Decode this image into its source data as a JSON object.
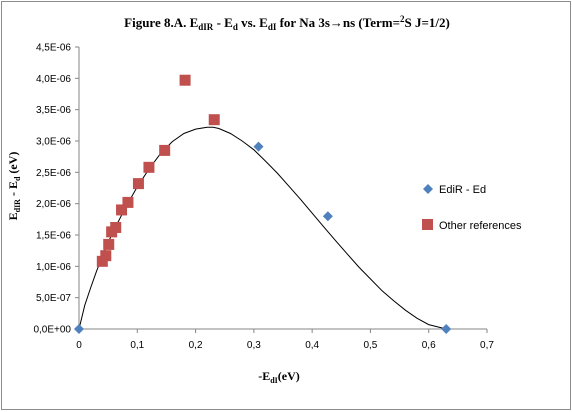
{
  "chart_data": {
    "type": "scatter",
    "title_parts": [
      "Figure 8.A.  E",
      "dIR",
      " - E",
      "d",
      " vs. E",
      "dI",
      " for Na 3s",
      "→",
      "ns (Term=",
      "2",
      "S J=1/2)"
    ],
    "xlabel_parts": [
      "-E",
      "dI",
      "(eV)"
    ],
    "ylabel_parts": [
      "E",
      "dIR",
      " - E",
      "d",
      " (eV)"
    ],
    "xlim": [
      0,
      0.7
    ],
    "ylim": [
      0,
      4.5e-06
    ],
    "x_ticks": [
      0,
      0.1,
      0.2,
      0.3,
      0.4,
      0.5,
      0.6,
      0.7
    ],
    "x_tick_labels": [
      "0",
      "0,1",
      "0,2",
      "0,3",
      "0,4",
      "0,5",
      "0,6",
      "0,7"
    ],
    "y_ticks": [
      0,
      5e-07,
      1e-06,
      1.5e-06,
      2e-06,
      2.5e-06,
      3e-06,
      3.5e-06,
      4e-06,
      4.5e-06
    ],
    "y_tick_labels": [
      "0,0E+00",
      "5,0E-07",
      "1,0E-06",
      "1,5E-06",
      "2,0E-06",
      "2,5E-06",
      "3,0E-06",
      "3,5E-06",
      "4,0E-06",
      "4,5E-06"
    ],
    "grid": false,
    "legend_position": "right",
    "series": [
      {
        "name": "EdiR - Ed",
        "marker": "diamond",
        "color": "#4f81bd",
        "x": [
          0.0,
          0.308,
          0.427,
          0.63
        ],
        "y": [
          0.0,
          2.91e-06,
          1.8e-06,
          0.0
        ]
      },
      {
        "name": "Other references",
        "marker": "square",
        "color": "#c0504d",
        "x": [
          0.04,
          0.046,
          0.051,
          0.056,
          0.063,
          0.073,
          0.084,
          0.102,
          0.12,
          0.147,
          0.182,
          0.232
        ],
        "y": [
          1.08e-06,
          1.17e-06,
          1.35e-06,
          1.55e-06,
          1.62e-06,
          1.9e-06,
          2.02e-06,
          2.32e-06,
          2.58e-06,
          2.85e-06,
          3.97e-06,
          3.34e-06
        ]
      }
    ],
    "fit_curve": {
      "color": "#000000",
      "x": [
        0.0,
        0.005,
        0.01,
        0.02,
        0.03,
        0.04,
        0.05,
        0.06,
        0.08,
        0.1,
        0.12,
        0.14,
        0.16,
        0.18,
        0.2,
        0.22,
        0.23,
        0.24,
        0.26,
        0.28,
        0.3,
        0.32,
        0.34,
        0.36,
        0.38,
        0.4,
        0.42,
        0.44,
        0.46,
        0.48,
        0.5,
        0.52,
        0.54,
        0.56,
        0.58,
        0.6,
        0.63
      ],
      "y": [
        0.0,
        1.9e-07,
        3.8e-07,
        6.6e-07,
        9.2e-07,
        1.16e-06,
        1.38e-06,
        1.58e-06,
        1.94e-06,
        2.27e-06,
        2.55e-06,
        2.8e-06,
        2.99e-06,
        3.12e-06,
        3.19e-06,
        3.22e-06,
        3.22e-06,
        3.2e-06,
        3.12e-06,
        3e-06,
        2.86e-06,
        2.68e-06,
        2.49e-06,
        2.28e-06,
        2.07e-06,
        1.85e-06,
        1.63e-06,
        1.41e-06,
        1.2e-06,
        9.9e-07,
        8e-07,
        6.1e-07,
        4.5e-07,
        3e-07,
        1.7e-07,
        7e-08,
        0.0
      ]
    }
  }
}
